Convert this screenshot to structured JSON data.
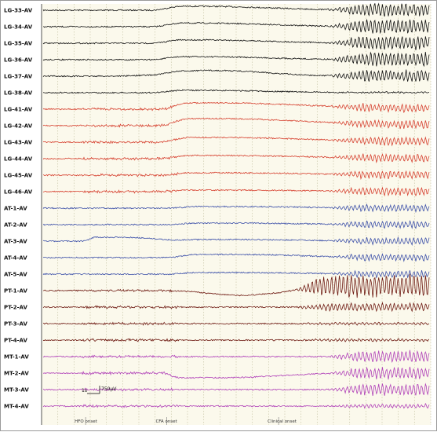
{
  "chart_data": {
    "type": "line",
    "title": "",
    "xlabel": "",
    "ylabel": "",
    "grid": true,
    "colors": {
      "background": "#fbf9ec",
      "grid": "#c9c6a8",
      "LG": "#111111",
      "LG_red": "#d6402f",
      "AT": "#3b4fa8",
      "PT": "#6e1a12",
      "MT": "#b040b8"
    },
    "channels": [
      {
        "name": "LG-33-AV",
        "group": "LG"
      },
      {
        "name": "LG-34-AV",
        "group": "LG"
      },
      {
        "name": "LG-35-AV",
        "group": "LG"
      },
      {
        "name": "LG-36-AV",
        "group": "LG"
      },
      {
        "name": "LG-37-AV",
        "group": "LG"
      },
      {
        "name": "LG-38-AV",
        "group": "LG"
      },
      {
        "name": "LG-41-AV",
        "group": "LG_red"
      },
      {
        "name": "LG-42-AV",
        "group": "LG_red"
      },
      {
        "name": "LG-43-AV",
        "group": "LG_red"
      },
      {
        "name": "LG-44-AV",
        "group": "LG_red"
      },
      {
        "name": "LG-45-AV",
        "group": "LG_red"
      },
      {
        "name": "LG-46-AV",
        "group": "LG_red"
      },
      {
        "name": "AT-1-AV",
        "group": "AT"
      },
      {
        "name": "AT-2-AV",
        "group": "AT"
      },
      {
        "name": "AT-3-AV",
        "group": "AT"
      },
      {
        "name": "AT-4-AV",
        "group": "AT"
      },
      {
        "name": "AT-5-AV",
        "group": "AT"
      },
      {
        "name": "PT-1-AV",
        "group": "PT"
      },
      {
        "name": "PT-2-AV",
        "group": "PT"
      },
      {
        "name": "PT-3-AV",
        "group": "PT"
      },
      {
        "name": "PT-4-AV",
        "group": "PT"
      },
      {
        "name": "MT-1-AV",
        "group": "MT"
      },
      {
        "name": "MT-2-AV",
        "group": "MT"
      },
      {
        "name": "MT-3-AV",
        "group": "MT"
      },
      {
        "name": "MT-4-AV",
        "group": "MT"
      }
    ],
    "markers": [
      {
        "label": "HFO onset",
        "t": 0.11
      },
      {
        "label": "CFA onset",
        "t": 0.32
      },
      {
        "label": "Clinical onset",
        "t": 0.61
      }
    ],
    "scale_bar": {
      "time_label": "1s",
      "amplitude_label": "750μV"
    }
  }
}
